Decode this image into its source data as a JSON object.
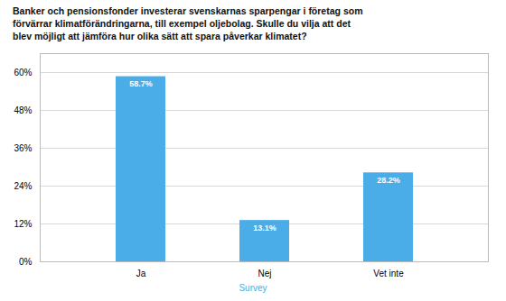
{
  "chart_data": {
    "type": "bar",
    "title": "Banker och pensionsfonder investerar svenskarnas sparpengar i företag som\nförvärrar klimatförändringarna, till exempel oljebolag. Skulle du vilja att det\nblev möjligt att jämföra hur olika sätt att spara påverkar klimatet?",
    "caption": "Survey",
    "categories": [
      "Ja",
      "Nej",
      "Vet inte"
    ],
    "values": [
      58.7,
      13.1,
      28.2
    ],
    "value_labels": [
      "58.7%",
      "13.1%",
      "28.2%"
    ],
    "data_labels": true,
    "color": "#4BADE8",
    "ylim": [
      0,
      66
    ],
    "yticks": [
      {
        "value": 0,
        "label": "0%"
      },
      {
        "value": 12,
        "label": "12%"
      },
      {
        "value": 24,
        "label": "24%"
      },
      {
        "value": 36,
        "label": "36%"
      },
      {
        "value": 48,
        "label": "48%"
      },
      {
        "value": 60,
        "label": "60%"
      }
    ],
    "grid": true
  }
}
